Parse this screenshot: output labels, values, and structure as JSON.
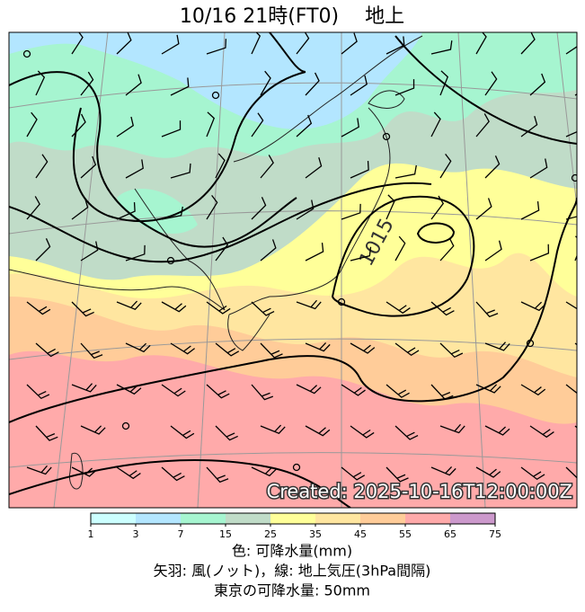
{
  "title": "10/16  21時(FT0)　 地上",
  "created": "Created: 2025-10-16T12:00:00Z",
  "isobar_label": "1015",
  "colorbar": {
    "ticks": [
      1,
      3,
      7,
      15,
      25,
      35,
      45,
      55,
      65,
      75
    ],
    "colors": [
      "#ccffff",
      "#b3e6ff",
      "#a6f5d0",
      "#c0dcc8",
      "#ffff99",
      "#ffe6a0",
      "#ffcc99",
      "#ffaaaa",
      "#cc99cc"
    ]
  },
  "caption": [
    "色: 可降水量(mm)",
    "矢羽: 風(ノット)，線: 地上気圧(3hPa間隔)",
    "東京の可降水量: 50mm"
  ]
}
